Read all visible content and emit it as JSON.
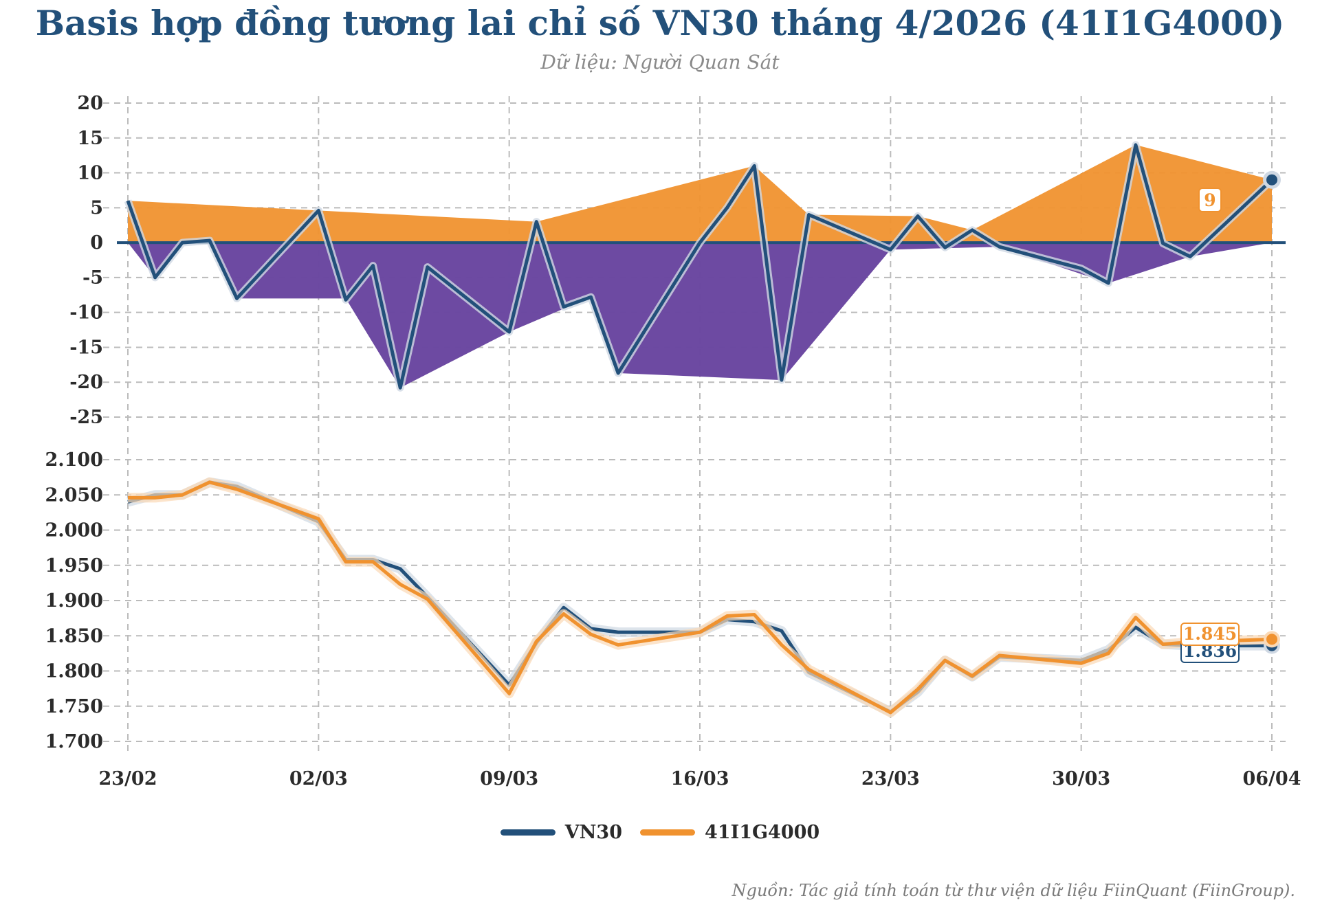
{
  "title": "Basis hợp đồng tương lai chỉ số VN30 tháng 4/2026 (41I1G4000)",
  "subtitle": "Dữ liệu: Người Quan Sát",
  "source": "Nguồn: Tác giả tính toán từ thư viện dữ liệu FiinQuant (FiinGroup).",
  "colors": {
    "vn30": "#22507a",
    "futures": "#f0922f",
    "basis_negative": "#6a46a0",
    "basis_positive": "#f0922f",
    "grid": "#bbbbbb"
  },
  "chart_data": [
    {
      "type": "area",
      "panel": "top",
      "name": "Basis",
      "x": [
        "23/02",
        "24/02",
        "25/02",
        "26/02",
        "27/02",
        "02/03",
        "03/03",
        "04/03",
        "05/03",
        "06/03",
        "09/03",
        "10/03",
        "11/03",
        "12/03",
        "13/03",
        "16/03",
        "17/03",
        "18/03",
        "19/03",
        "20/03",
        "23/03",
        "24/03",
        "25/03",
        "26/03",
        "27/03",
        "30/03",
        "31/03",
        "01/04",
        "02/04",
        "03/04",
        "06/04"
      ],
      "values": [
        6,
        -5,
        0,
        0.3,
        -8,
        4.6,
        -8.2,
        -3.3,
        -20.8,
        -3.5,
        -12.8,
        3,
        -9.2,
        -7.8,
        -18.7,
        0,
        5,
        11,
        -19.7,
        4,
        -1,
        3.8,
        -0.7,
        1.8,
        -0.6,
        -3.7,
        -5.8,
        14,
        -0.1,
        -2,
        9
      ],
      "grid": true,
      "ylim": [
        -25,
        20
      ],
      "yticks": [
        "20",
        "15",
        "10",
        "5",
        "0",
        "-5",
        "-10",
        "-15",
        "-20",
        "-25"
      ],
      "end_label": "9"
    },
    {
      "type": "line",
      "panel": "bottom",
      "x": [
        "23/02",
        "24/02",
        "25/02",
        "26/02",
        "27/02",
        "02/03",
        "03/03",
        "04/03",
        "05/03",
        "06/03",
        "09/03",
        "10/03",
        "11/03",
        "12/03",
        "13/03",
        "16/03",
        "17/03",
        "18/03",
        "19/03",
        "20/03",
        "23/03",
        "24/03",
        "25/03",
        "26/03",
        "27/03",
        "30/03",
        "31/03",
        "01/04",
        "02/04",
        "03/04",
        "06/04"
      ],
      "series": [
        {
          "name": "VN30",
          "values": [
            2040,
            2050,
            2050,
            2068,
            2062,
            2012,
            1958,
            1958,
            1945,
            1905,
            1780,
            1840,
            1890,
            1860,
            1855,
            1855,
            1873,
            1870,
            1857,
            1798,
            1742,
            1770,
            1815,
            1792,
            1820,
            1815,
            1830,
            1862,
            1838,
            1836,
            1836
          ],
          "end_label": "1.836"
        },
        {
          "name": "41I1G4000",
          "values": [
            2046,
            2046,
            2050,
            2068,
            2058,
            2016,
            1955,
            1955,
            1923,
            1902,
            1768,
            1842,
            1881,
            1852,
            1837,
            1855,
            1878,
            1880,
            1837,
            1802,
            1741,
            1774,
            1815,
            1793,
            1822,
            1811,
            1825,
            1876,
            1838,
            1841,
            1845
          ],
          "end_label": "1.845"
        }
      ],
      "grid": true,
      "ylim": [
        1700,
        2100
      ],
      "yticks": [
        "2.100",
        "2.050",
        "2.000",
        "1.950",
        "1.900",
        "1.850",
        "1.800",
        "1.750",
        "1.700"
      ],
      "xticks": [
        "23/02",
        "02/03",
        "09/03",
        "16/03",
        "23/03",
        "30/03",
        "06/04"
      ]
    }
  ],
  "legend": [
    {
      "label": "VN30",
      "color": "#22507a"
    },
    {
      "label": "41I1G4000",
      "color": "#f0922f"
    }
  ]
}
